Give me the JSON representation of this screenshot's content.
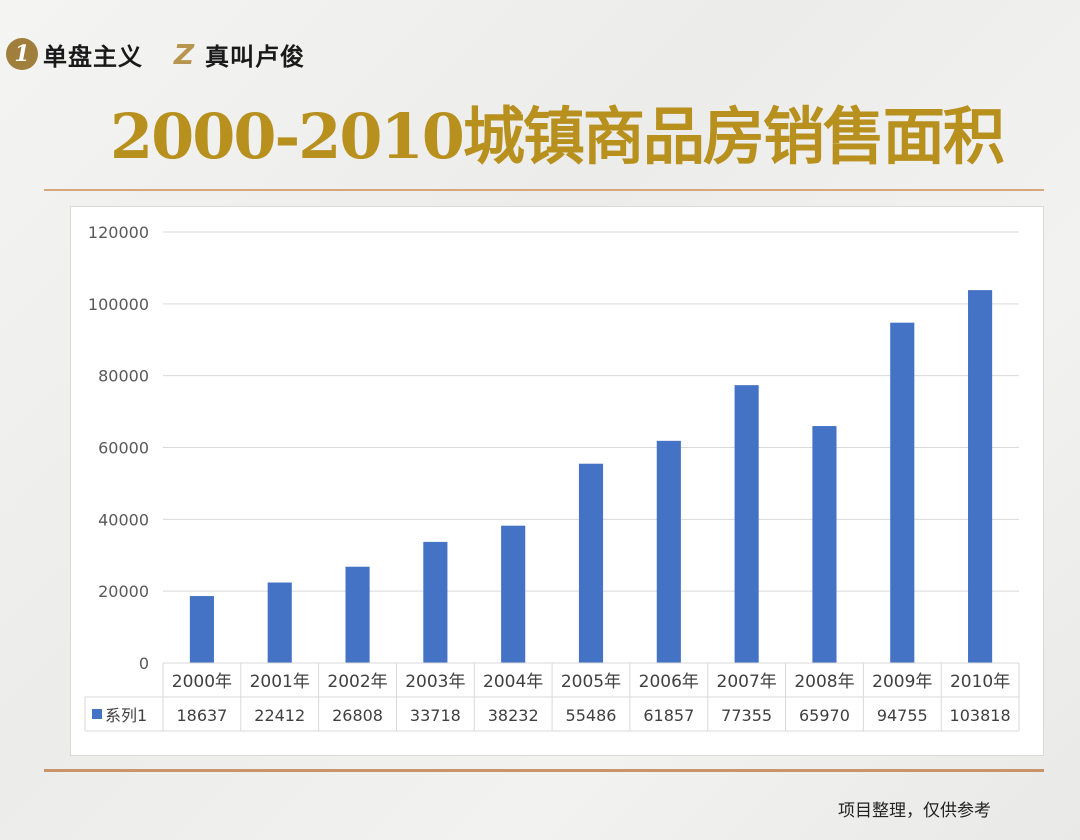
{
  "brand": {
    "icon_one": "1",
    "label": "单盘主义",
    "icon_two": "Z",
    "label2": "真叫卢俊"
  },
  "page_title": "2000-2010城镇商品房销售面积",
  "footer_note": "项目整理，仅供参考",
  "colors": {
    "bar": "#4472c4",
    "title": "#b8901e",
    "rule": "#d7a77c"
  },
  "chart_data": {
    "type": "bar",
    "categories": [
      "2000年",
      "2001年",
      "2002年",
      "2003年",
      "2004年",
      "2005年",
      "2006年",
      "2007年",
      "2008年",
      "2009年",
      "2010年"
    ],
    "series": [
      {
        "name": "系列1",
        "values": [
          18637,
          22412,
          26808,
          33718,
          38232,
          55486,
          61857,
          77355,
          65970,
          94755,
          103818
        ]
      }
    ],
    "yticks": [
      0,
      20000,
      40000,
      60000,
      80000,
      100000,
      120000
    ],
    "ylim": [
      0,
      120000
    ],
    "grid": true,
    "data_table": true,
    "legend": "data-table"
  }
}
